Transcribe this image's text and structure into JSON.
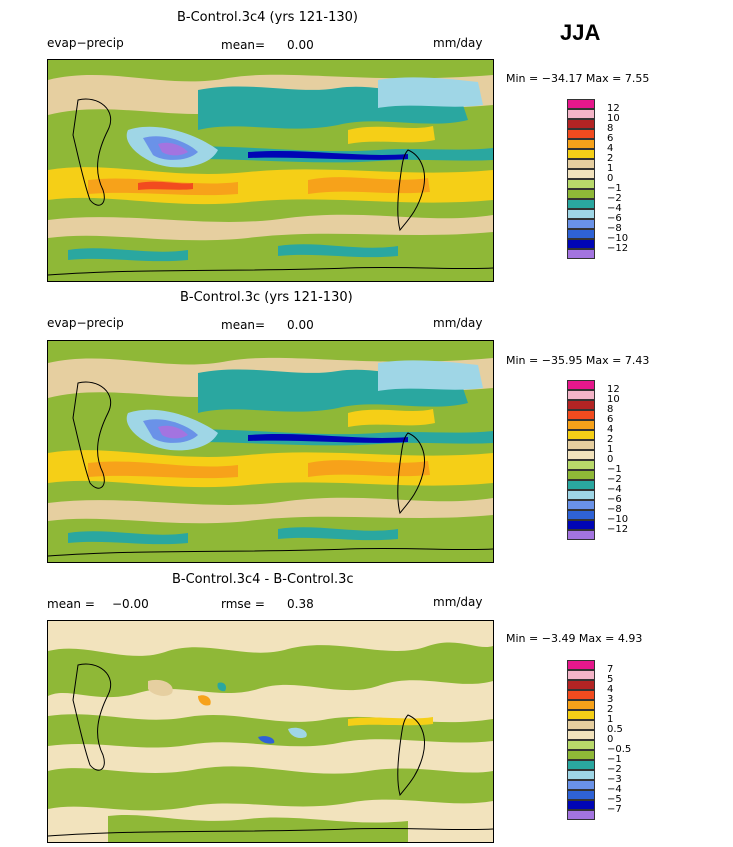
{
  "season": "JJA",
  "colors": {
    "land_green": "#8fb837",
    "tan": "#e6cfa0",
    "yellow": "#f5cf17",
    "orange": "#f7a21a",
    "teal": "#2aa7a0",
    "light_blue": "#9fd6e6",
    "blue": "#2f62d6",
    "navy": "#0005b5",
    "purple": "#a374e0"
  },
  "panels": [
    {
      "title": "B-Control.3c4 (yrs 121-130)",
      "left_label": "evap−precip",
      "mean_label": "mean=",
      "mean_value": "0.00",
      "units": "mm/day",
      "minmax": "Min = −34.17 Max =    7.55",
      "legend": {
        "labels": [
          "12",
          "10",
          "8",
          "6",
          "4",
          "2",
          "1",
          "0",
          "−1",
          "−2",
          "−4",
          "−6",
          "−8",
          "−10",
          "−12"
        ],
        "colors": [
          "#e6178c",
          "#f4b4c8",
          "#b32424",
          "#f24b1f",
          "#f7a21a",
          "#f5cf17",
          "#e6cfa0",
          "#f2e3bd",
          "#b8d96a",
          "#8fb837",
          "#2aa7a0",
          "#9fd6e6",
          "#6a92e8",
          "#2f62d6",
          "#0005b5",
          "#a374e0"
        ]
      }
    },
    {
      "title": "B-Control.3c (yrs 121-130)",
      "left_label": "evap−precip",
      "mean_label": "mean=",
      "mean_value": "0.00",
      "units": "mm/day",
      "minmax": "Min = −35.95 Max =    7.43",
      "legend": {
        "labels": [
          "12",
          "10",
          "8",
          "6",
          "4",
          "2",
          "1",
          "0",
          "−1",
          "−2",
          "−4",
          "−6",
          "−8",
          "−10",
          "−12"
        ],
        "colors": [
          "#e6178c",
          "#f4b4c8",
          "#b32424",
          "#f24b1f",
          "#f7a21a",
          "#f5cf17",
          "#e6cfa0",
          "#f2e3bd",
          "#b8d96a",
          "#8fb837",
          "#2aa7a0",
          "#9fd6e6",
          "#6a92e8",
          "#2f62d6",
          "#0005b5",
          "#a374e0"
        ]
      }
    },
    {
      "title": "B-Control.3c4 - B-Control.3c",
      "left_label": "mean =",
      "left_value": "−0.00",
      "mean_label": "rmse =",
      "mean_value": "0.38",
      "units": "mm/day",
      "minmax": "Min =  −3.49 Max =    4.93",
      "legend": {
        "labels": [
          "7",
          "5",
          "4",
          "3",
          "2",
          "1",
          "0.5",
          "0",
          "−0.5",
          "−1",
          "−2",
          "−3",
          "−4",
          "−5",
          "−7"
        ],
        "colors": [
          "#e6178c",
          "#f4b4c8",
          "#b32424",
          "#f24b1f",
          "#f7a21a",
          "#f5cf17",
          "#e6cfa0",
          "#f2e3bd",
          "#b8d96a",
          "#8fb837",
          "#2aa7a0",
          "#9fd6e6",
          "#6a92e8",
          "#2f62d6",
          "#0005b5",
          "#a374e0"
        ]
      }
    }
  ]
}
